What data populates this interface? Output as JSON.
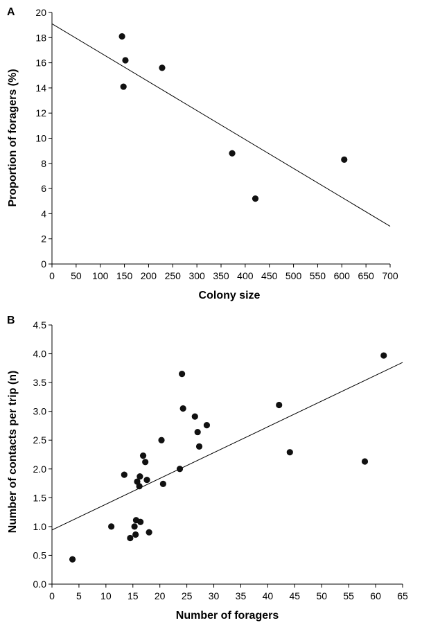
{
  "chart_data": [
    {
      "panel_label": "A",
      "type": "scatter",
      "xlabel": "Colony size",
      "ylabel": "Proportion of foragers (%)",
      "xlim": [
        0,
        700
      ],
      "ylim": [
        0,
        20
      ],
      "xticks": [
        "0",
        "50",
        "100",
        "150",
        "200",
        "250",
        "300",
        "350",
        "400",
        "450",
        "500",
        "550",
        "600",
        "650",
        "700"
      ],
      "yticks": [
        "0",
        "2",
        "4",
        "6",
        "8",
        "10",
        "12",
        "14",
        "16",
        "18",
        "20"
      ],
      "points": [
        {
          "x": 145,
          "y": 18.1
        },
        {
          "x": 152,
          "y": 16.2
        },
        {
          "x": 148,
          "y": 14.1
        },
        {
          "x": 228,
          "y": 15.6
        },
        {
          "x": 373,
          "y": 8.8
        },
        {
          "x": 421,
          "y": 5.2
        },
        {
          "x": 605,
          "y": 8.3
        }
      ],
      "fit_line": [
        {
          "x": 0,
          "y": 19.1
        },
        {
          "x": 700,
          "y": 3.0
        }
      ]
    },
    {
      "panel_label": "B",
      "type": "scatter",
      "xlabel": "Number of foragers",
      "ylabel": "Number of contacts per trip (n)",
      "xlim": [
        0,
        65
      ],
      "ylim": [
        0,
        4.5
      ],
      "xticks": [
        "0",
        "5",
        "10",
        "15",
        "20",
        "25",
        "30",
        "35",
        "40",
        "45",
        "50",
        "55",
        "60",
        "65"
      ],
      "yticks": [
        "0.0",
        "0.5",
        "1.0",
        "1.5",
        "2.0",
        "2.5",
        "3.0",
        "3.5",
        "4.0",
        "4.5"
      ],
      "points": [
        {
          "x": 3.8,
          "y": 0.43
        },
        {
          "x": 11.0,
          "y": 1.0
        },
        {
          "x": 13.4,
          "y": 1.9
        },
        {
          "x": 14.5,
          "y": 0.8
        },
        {
          "x": 15.3,
          "y": 1.0
        },
        {
          "x": 15.5,
          "y": 0.86
        },
        {
          "x": 15.6,
          "y": 1.11
        },
        {
          "x": 15.8,
          "y": 1.78
        },
        {
          "x": 16.2,
          "y": 1.7
        },
        {
          "x": 16.3,
          "y": 1.87
        },
        {
          "x": 16.4,
          "y": 1.08
        },
        {
          "x": 16.9,
          "y": 2.23
        },
        {
          "x": 17.3,
          "y": 2.12
        },
        {
          "x": 17.6,
          "y": 1.81
        },
        {
          "x": 18.0,
          "y": 0.9
        },
        {
          "x": 20.3,
          "y": 2.5
        },
        {
          "x": 20.6,
          "y": 1.74
        },
        {
          "x": 23.7,
          "y": 2.0
        },
        {
          "x": 24.1,
          "y": 3.65
        },
        {
          "x": 24.3,
          "y": 3.05
        },
        {
          "x": 26.5,
          "y": 2.91
        },
        {
          "x": 27.0,
          "y": 2.64
        },
        {
          "x": 27.3,
          "y": 2.39
        },
        {
          "x": 28.7,
          "y": 2.76
        },
        {
          "x": 42.1,
          "y": 3.11
        },
        {
          "x": 44.1,
          "y": 2.29
        },
        {
          "x": 58.0,
          "y": 2.13
        },
        {
          "x": 61.5,
          "y": 3.97
        }
      ],
      "fit_line": [
        {
          "x": 0,
          "y": 0.94
        },
        {
          "x": 65,
          "y": 3.85
        }
      ]
    }
  ]
}
